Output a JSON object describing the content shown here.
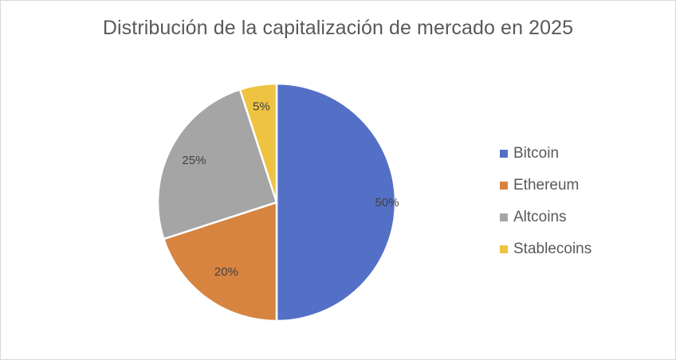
{
  "chart_data": {
    "type": "pie",
    "title": "Distribución de la capitalización de mercado en 2025",
    "categories": [
      "Bitcoin",
      "Ethereum",
      "Altcoins",
      "Stablecoins"
    ],
    "values": [
      50,
      20,
      25,
      5
    ],
    "labels": [
      "50%",
      "20%",
      "25%",
      "5%"
    ],
    "colors": [
      "#5470C6",
      "#D68440",
      "#A5A5A5",
      "#EEC341"
    ],
    "legend_position": "right",
    "start_angle_deg": 0,
    "direction": "clockwise"
  },
  "legend": {
    "items": [
      {
        "label": "Bitcoin",
        "color": "#5470C6"
      },
      {
        "label": "Ethereum",
        "color": "#D68440"
      },
      {
        "label": "Altcoins",
        "color": "#A5A5A5"
      },
      {
        "label": "Stablecoins",
        "color": "#EEC341"
      }
    ]
  }
}
